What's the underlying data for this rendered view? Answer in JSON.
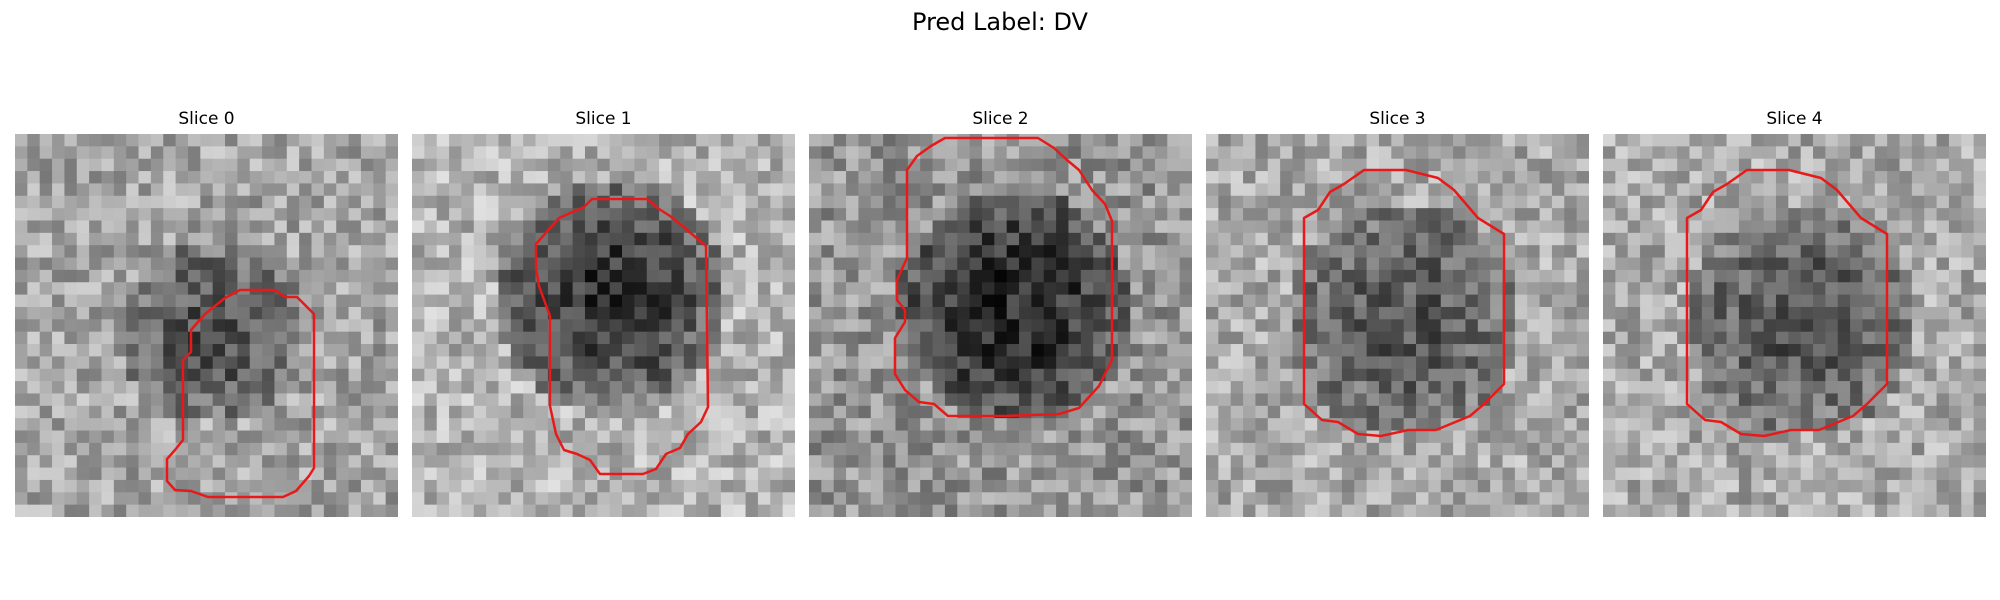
{
  "figure": {
    "title": "Pred Label: DV"
  },
  "slices": [
    {
      "label": "Slice 0"
    },
    {
      "label": "Slice 1"
    },
    {
      "label": "Slice 2"
    },
    {
      "label": "Slice 3"
    },
    {
      "label": "Slice 4"
    }
  ],
  "colors": {
    "contour": "#e81919",
    "colormap": "gray"
  }
}
